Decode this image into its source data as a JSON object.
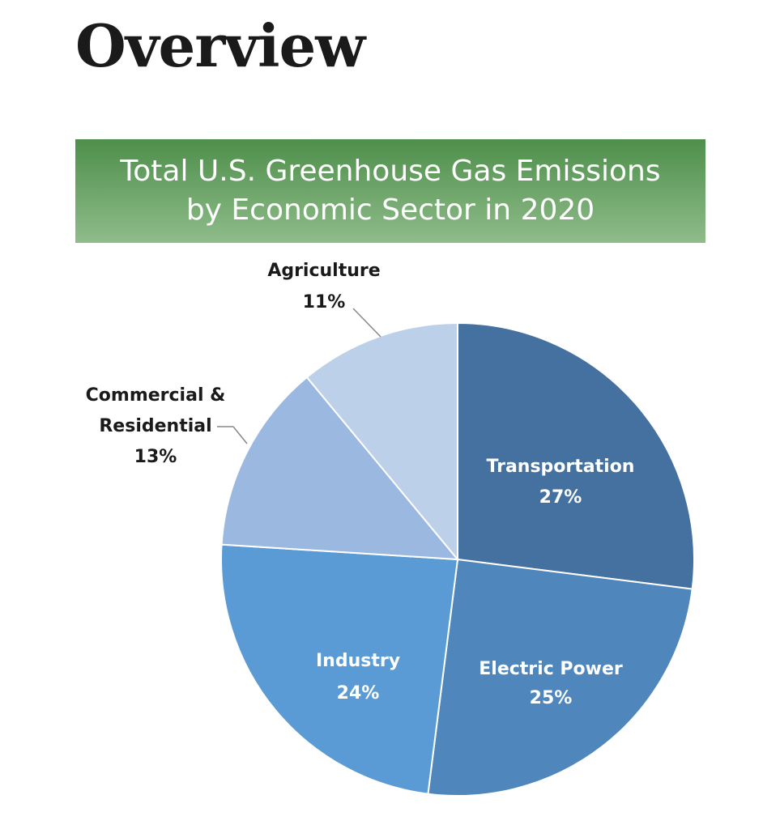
{
  "heading": "Overview",
  "chart_data": {
    "type": "pie",
    "title_line1": "Total U.S. Greenhouse Gas Emissions",
    "title_line2": "by Economic Sector in 2020",
    "slices": [
      {
        "name": "Transportation",
        "value": 27,
        "pct": "27%",
        "color": "#44719f"
      },
      {
        "name": "Electric Power",
        "value": 25,
        "pct": "25%",
        "color": "#4f86bc"
      },
      {
        "name": "Industry",
        "value": 24,
        "pct": "24%",
        "color": "#5b9bd5"
      },
      {
        "name": "Commercial & Residential",
        "name_line1": "Commercial &",
        "name_line2": "Residential",
        "value": 13,
        "pct": "13%",
        "color": "#9ab8e0"
      },
      {
        "name": "Agriculture",
        "value": 11,
        "pct": "11%",
        "color": "#bdd0ea"
      }
    ]
  }
}
